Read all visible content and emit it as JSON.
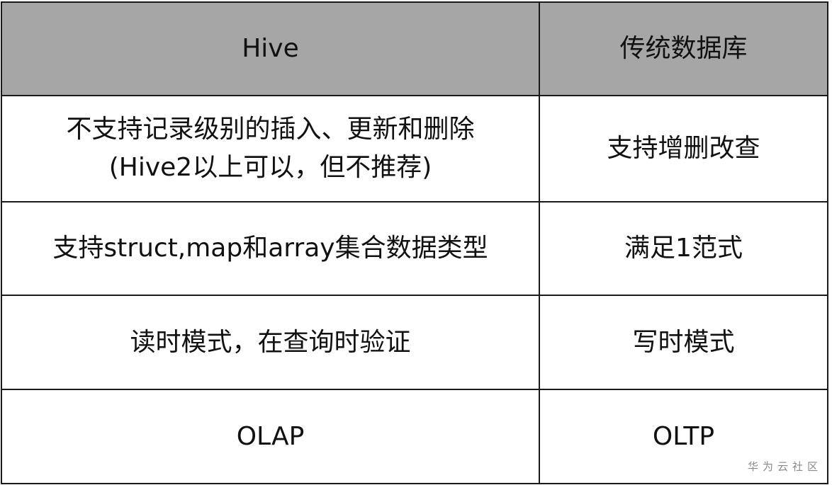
{
  "table": {
    "headers": [
      "Hive",
      "传统数据库"
    ],
    "rows": [
      {
        "hive": [
          "不支持记录级别的插入、更新和删除",
          "(Hive2以上可以，但不推荐)"
        ],
        "traditional": "支持增删改查"
      },
      {
        "hive": [
          "支持struct,map和array集合数据类型"
        ],
        "traditional": "满足1范式"
      },
      {
        "hive": [
          "读时模式，在查询时验证"
        ],
        "traditional": "写时模式"
      },
      {
        "hive": [
          "OLAP"
        ],
        "traditional": "OLTP"
      }
    ]
  },
  "colors": {
    "header_bg": "#a6a6a6",
    "border": "#1a1a1a"
  },
  "watermark": "华为云社区"
}
